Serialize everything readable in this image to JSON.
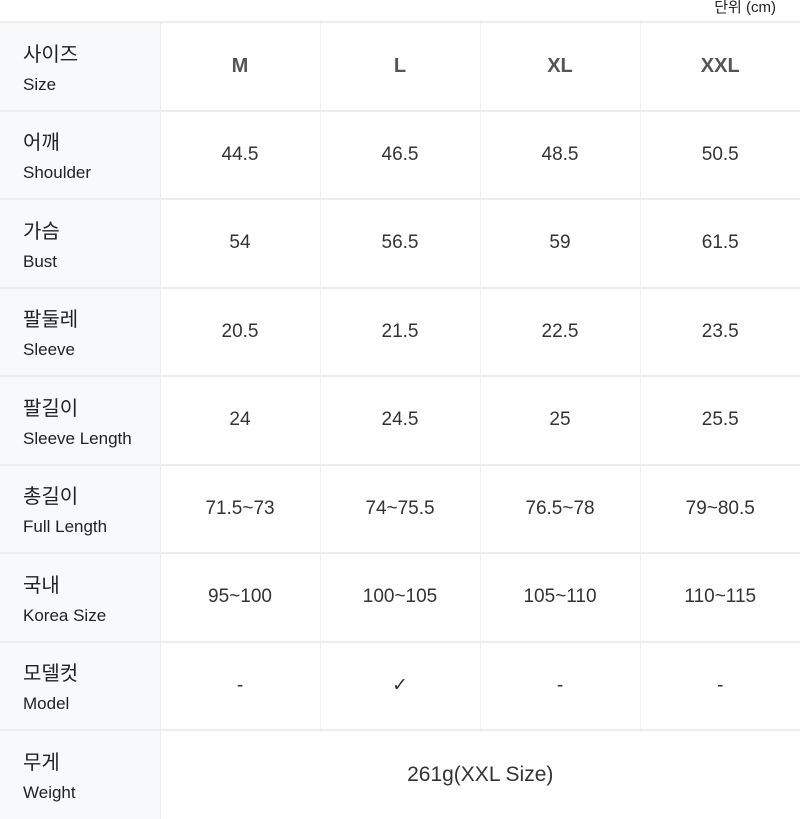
{
  "unit_label": "단위 (cm)",
  "header": {
    "ko": "사이즈",
    "en": "Size",
    "sizes": [
      "M",
      "L",
      "XL",
      "XXL"
    ]
  },
  "rows": [
    {
      "ko": "어깨",
      "en": "Shoulder",
      "values": [
        "44.5",
        "46.5",
        "48.5",
        "50.5"
      ]
    },
    {
      "ko": "가슴",
      "en": "Bust",
      "values": [
        "54",
        "56.5",
        "59",
        "61.5"
      ]
    },
    {
      "ko": "팔둘레",
      "en": "Sleeve",
      "values": [
        "20.5",
        "21.5",
        "22.5",
        "23.5"
      ]
    },
    {
      "ko": "팔길이",
      "en": "Sleeve Length",
      "values": [
        "24",
        "24.5",
        "25",
        "25.5"
      ]
    },
    {
      "ko": "총길이",
      "en": "Full Length",
      "values": [
        "71.5~73",
        "74~75.5",
        "76.5~78",
        "79~80.5"
      ]
    },
    {
      "ko": "국내",
      "en": "Korea Size",
      "values": [
        "95~100",
        "100~105",
        "105~110",
        "110~115"
      ]
    },
    {
      "ko": "모델컷",
      "en": "Model",
      "values": [
        "-",
        "✓",
        "-",
        "-"
      ]
    }
  ],
  "weight": {
    "ko": "무게",
    "en": "Weight",
    "value": "261g(XXL Size)"
  }
}
